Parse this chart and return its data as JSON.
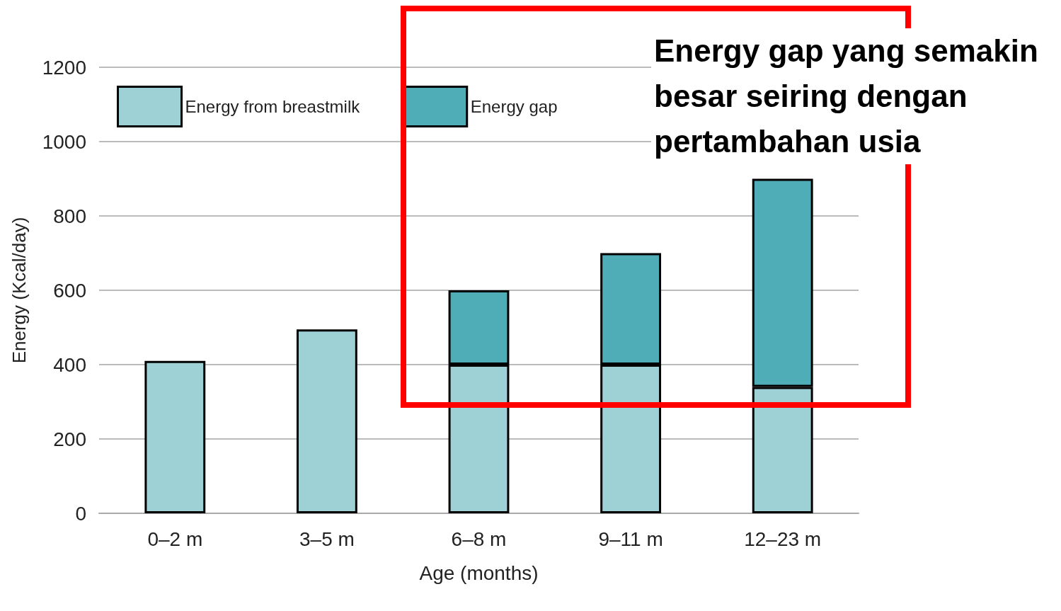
{
  "chart_data": {
    "type": "bar",
    "stacked": true,
    "xlabel": "Age (months)",
    "ylabel": "Energy (Kcal/day)",
    "categories": [
      "0–2 m",
      "3–5 m",
      "6–8 m",
      "9–11 m",
      "12–23 m"
    ],
    "series": [
      {
        "name": "Energy from breastmilk",
        "color": "#9dd1d6",
        "values": [
          410,
          495,
          400,
          400,
          340
        ]
      },
      {
        "name": "Energy gap",
        "color": "#4eadb6",
        "values": [
          null,
          null,
          200,
          300,
          560
        ]
      }
    ],
    "ylim": [
      0,
      1200
    ],
    "yticks": [
      0,
      200,
      400,
      600,
      800,
      1000,
      1200
    ],
    "grid": "y",
    "legend": "top left",
    "annotations": [
      "Energy gap yang semakin besar seiring dengan pertambahan usia"
    ]
  }
}
